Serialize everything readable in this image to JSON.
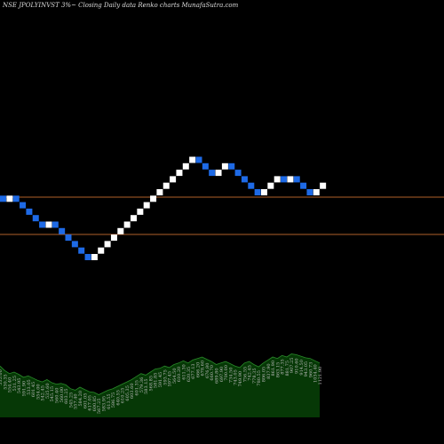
{
  "title": "NSE JPOLYINVST 3%~ Closing Daily data Renko charts MunafaSutra.com",
  "colors": {
    "background": "#000000",
    "up_brick": "#ffffff",
    "down_brick": "#1e6ae6",
    "reference_line": "#b0602a",
    "volume_fill": "#063806",
    "volume_line": "#2a8a2a",
    "volume_label": "#bbbbbb"
  },
  "chart_data": [
    {
      "type": "renko",
      "brick_size_percent": 3,
      "bricks": [
        -1,
        1,
        -1,
        -1,
        -1,
        -1,
        -1,
        1,
        -1,
        -1,
        -1,
        -1,
        -1,
        -1,
        1,
        1,
        1,
        1,
        1,
        1,
        1,
        1,
        1,
        1,
        1,
        1,
        1,
        1,
        1,
        1,
        -1,
        -1,
        -1,
        1,
        1,
        -1,
        -1,
        -1,
        -1,
        -1,
        1,
        1,
        1,
        -1,
        1,
        -1,
        -1,
        -1,
        1,
        1
      ],
      "reference_levels": [
        "upper",
        "lower"
      ]
    },
    {
      "type": "area",
      "name": "volume",
      "labels": [
        "535.00",
        "530.35",
        "554.40",
        "531.25",
        "543.95",
        "591.90",
        "533.05",
        "601.45",
        "554.00",
        "542.45",
        "535.60",
        "545.15",
        "560.40",
        "560.00",
        "603.25",
        "545.25",
        "557.40",
        "584.20",
        "601.05",
        "617.05",
        "600.85",
        "567.25",
        "583.95",
        "613.55",
        "586.75",
        "640.55",
        "610.25",
        "605.35",
        "603.60",
        "601.35",
        "579.36",
        "583.15",
        "568.85",
        "581.85",
        "591.45",
        "593.75",
        "597.45",
        "564.50",
        "610.20",
        "611.30",
        "620.35",
        "677.13",
        "666.20",
        "678.60",
        "676.80",
        "660.70",
        "689.80",
        "697.90",
        "700.00",
        "734.50",
        "743.05",
        "749.90",
        "756.55",
        "742.45",
        "778.35",
        "780.55",
        "806.05",
        "837.90",
        "861.90",
        "863.15",
        "877.35",
        "881.75",
        "907.25",
        "910.60",
        "914.50",
        "943.05",
        "960.73",
        "1034.40",
        "1121.90"
      ],
      "values": [
        68,
        62,
        58,
        60,
        57,
        53,
        55,
        52,
        49,
        47,
        50,
        46,
        44,
        45,
        43,
        38,
        36,
        40,
        37,
        34,
        33,
        30,
        33,
        36,
        38,
        41,
        44,
        47,
        50,
        54,
        58,
        56,
        60,
        64,
        65,
        68,
        66,
        70,
        72,
        75,
        72,
        76,
        78,
        80,
        77,
        74,
        70,
        72,
        74,
        71,
        68,
        66,
        72,
        74,
        70,
        67,
        72,
        76,
        80,
        78,
        82,
        80,
        84,
        83,
        81,
        79,
        78,
        75,
        72
      ]
    }
  ]
}
